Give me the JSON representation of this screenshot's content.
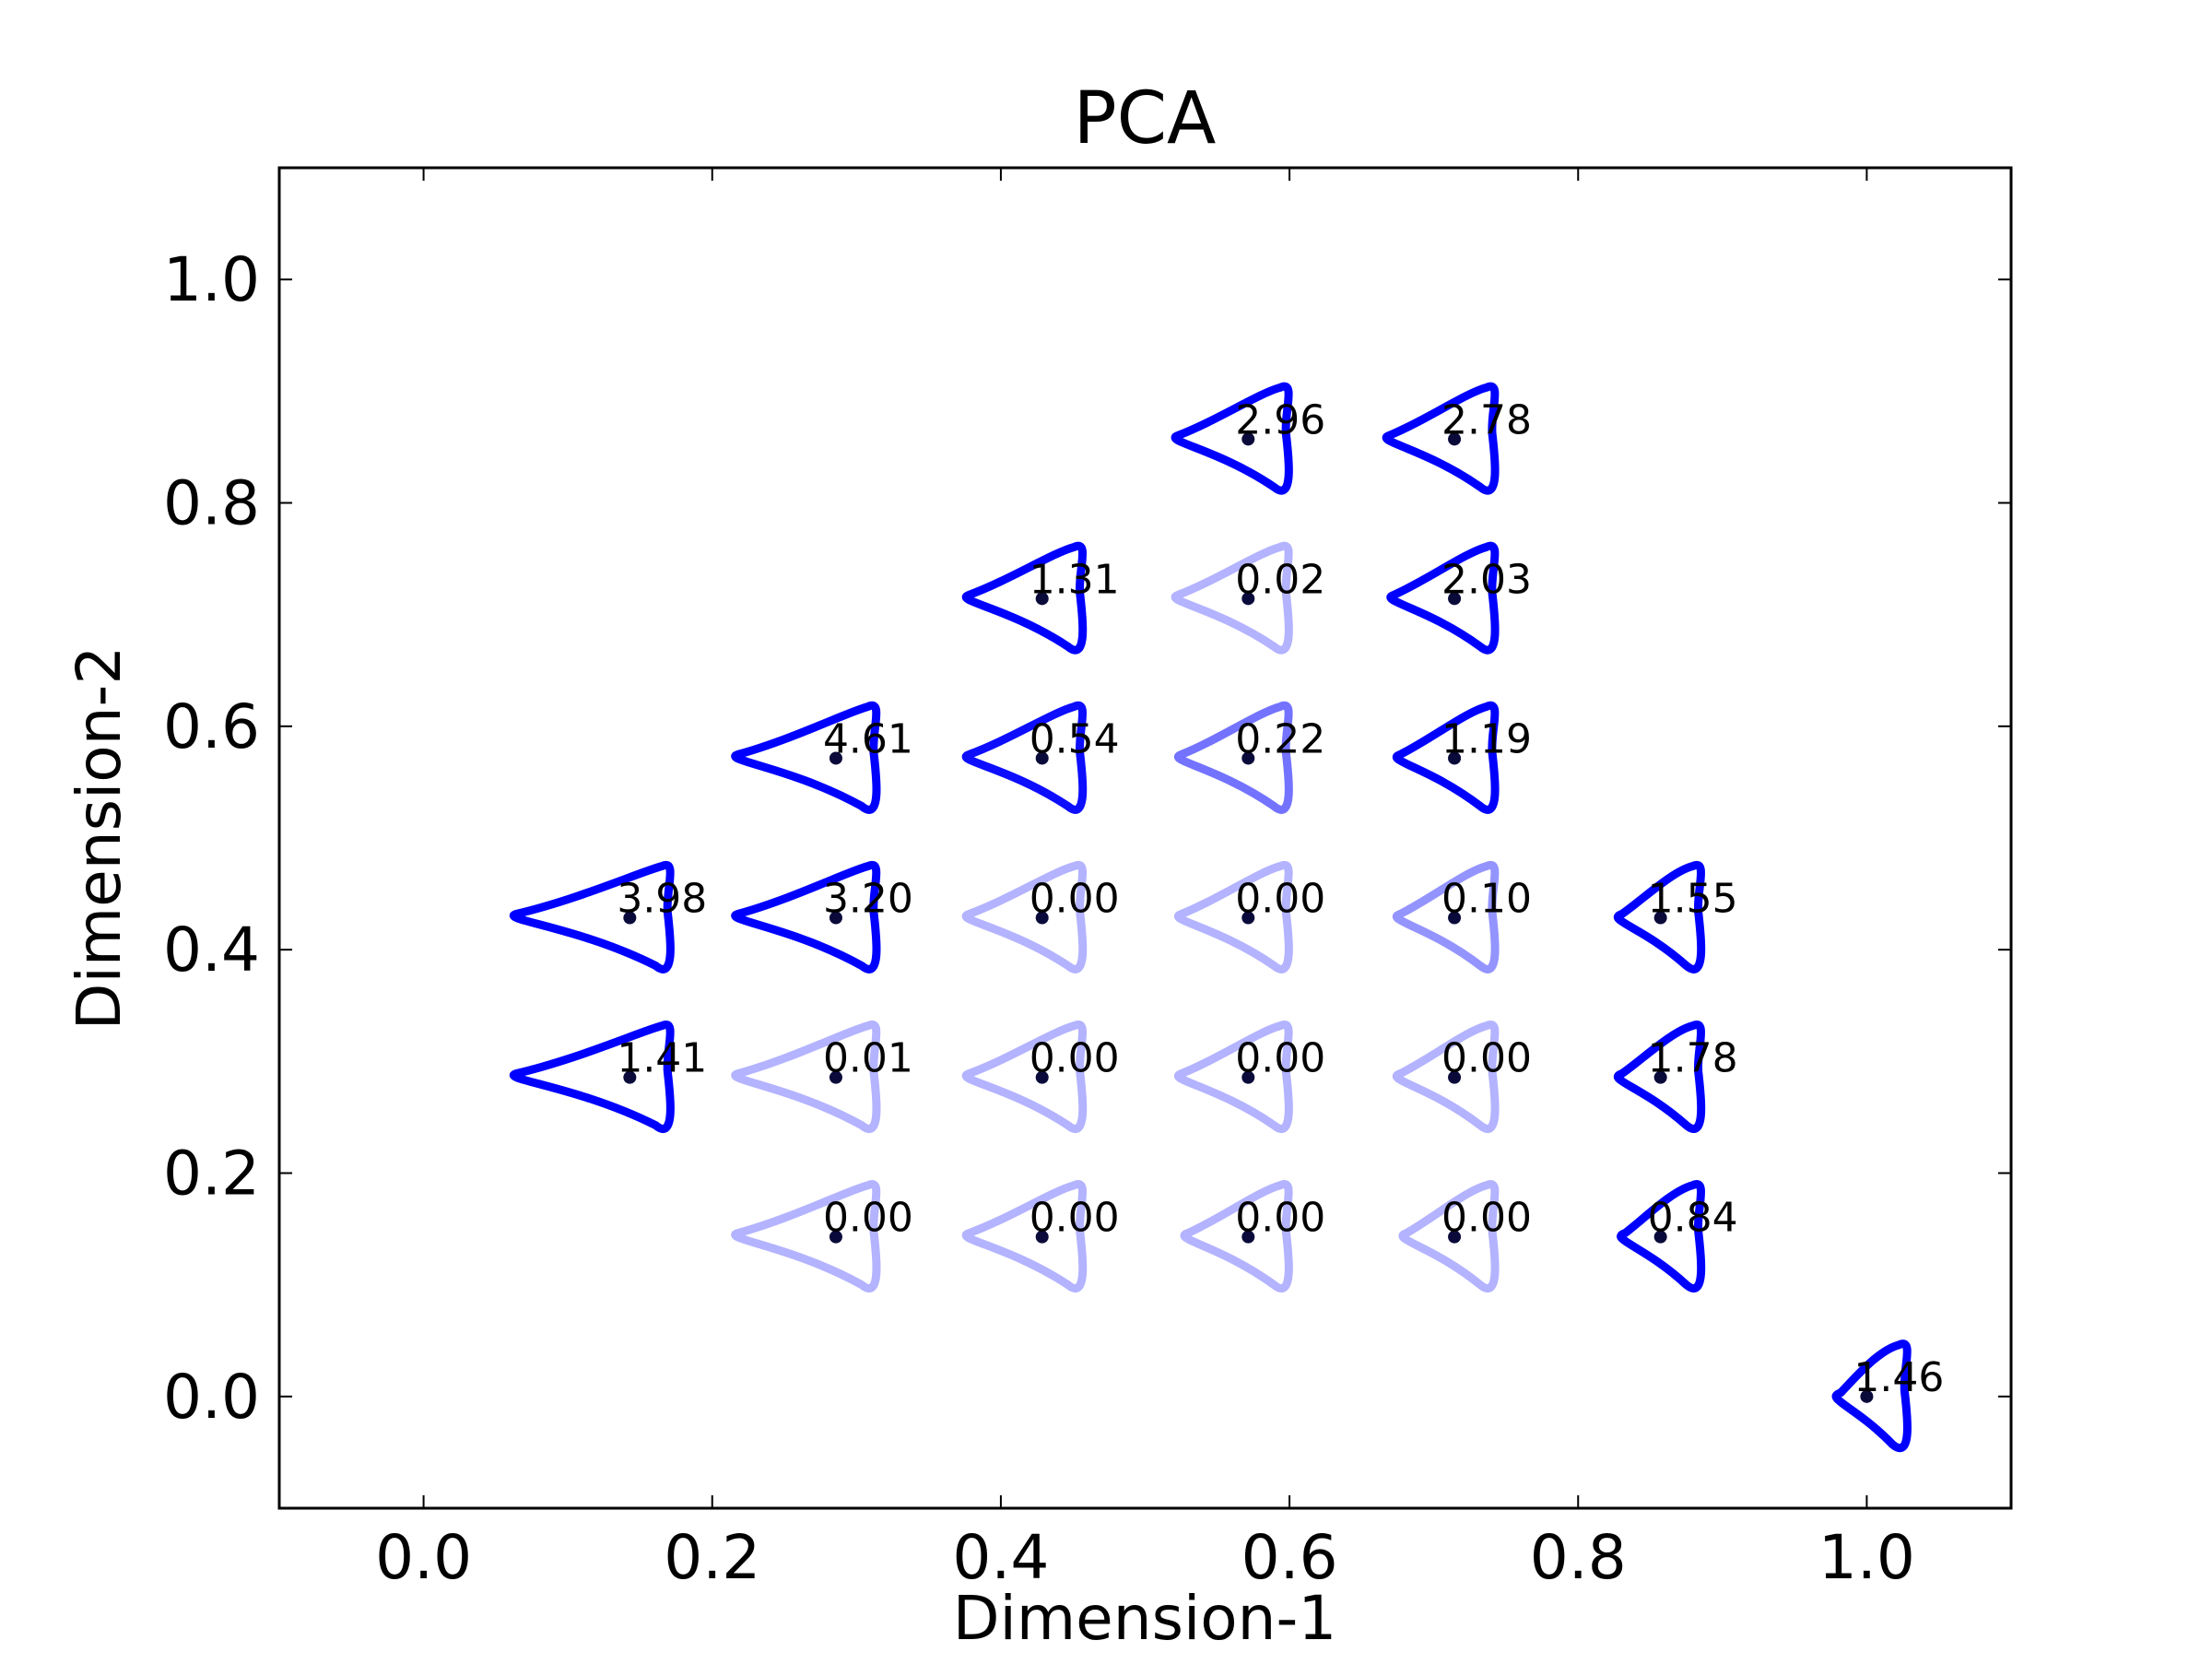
{
  "chart_data": {
    "type": "scatter",
    "title": "PCA",
    "xlabel": "Dimension-1",
    "ylabel": "Dimension-2",
    "xlim": [
      -0.1,
      1.1
    ],
    "ylim": [
      -0.1,
      1.1
    ],
    "xticks": [
      "0.0",
      "0.2",
      "0.4",
      "0.6",
      "0.8",
      "1.0"
    ],
    "yticks": [
      "0.0",
      "0.2",
      "0.4",
      "0.6",
      "0.8",
      "1.0"
    ],
    "grid": false,
    "marker_color": "#0000ff",
    "point_color": "#000000",
    "points": [
      {
        "x": 0.5714,
        "y": 0.8571,
        "label": "2.96",
        "strength": 1.0,
        "size": 1.0
      },
      {
        "x": 0.7143,
        "y": 0.8571,
        "label": "2.78",
        "strength": 1.0,
        "size": 0.92
      },
      {
        "x": 0.4286,
        "y": 0.7143,
        "label": "1.31",
        "strength": 1.0,
        "size": 1.05
      },
      {
        "x": 0.5714,
        "y": 0.7143,
        "label": "0.02",
        "strength": 0.3,
        "size": 1.0
      },
      {
        "x": 0.7143,
        "y": 0.7143,
        "label": "2.03",
        "strength": 1.0,
        "size": 0.85
      },
      {
        "x": 0.2857,
        "y": 0.5714,
        "label": "4.61",
        "strength": 1.0,
        "size": 1.45
      },
      {
        "x": 0.4286,
        "y": 0.5714,
        "label": "0.54",
        "strength": 0.95,
        "size": 1.05
      },
      {
        "x": 0.5714,
        "y": 0.5714,
        "label": "0.22",
        "strength": 0.55,
        "size": 0.95
      },
      {
        "x": 0.7143,
        "y": 0.5714,
        "label": "1.19",
        "strength": 1.0,
        "size": 0.75
      },
      {
        "x": 0.1429,
        "y": 0.4286,
        "label": "3.98",
        "strength": 1.0,
        "size": 1.7
      },
      {
        "x": 0.2857,
        "y": 0.4286,
        "label": "3.20",
        "strength": 1.0,
        "size": 1.45
      },
      {
        "x": 0.4286,
        "y": 0.4286,
        "label": "0.00",
        "strength": 0.3,
        "size": 1.05
      },
      {
        "x": 0.5714,
        "y": 0.4286,
        "label": "0.00",
        "strength": 0.3,
        "size": 0.95
      },
      {
        "x": 0.7143,
        "y": 0.4286,
        "label": "0.10",
        "strength": 0.42,
        "size": 0.75
      },
      {
        "x": 0.8571,
        "y": 0.4286,
        "label": "1.55",
        "strength": 1.0,
        "size": 0.5
      },
      {
        "x": 0.1429,
        "y": 0.2857,
        "label": "1.41",
        "strength": 1.0,
        "size": 1.7
      },
      {
        "x": 0.2857,
        "y": 0.2857,
        "label": "0.01",
        "strength": 0.3,
        "size": 1.45
      },
      {
        "x": 0.4286,
        "y": 0.2857,
        "label": "0.00",
        "strength": 0.3,
        "size": 1.05
      },
      {
        "x": 0.5714,
        "y": 0.2857,
        "label": "0.00",
        "strength": 0.3,
        "size": 0.95
      },
      {
        "x": 0.7143,
        "y": 0.2857,
        "label": "0.00",
        "strength": 0.3,
        "size": 0.75
      },
      {
        "x": 0.8571,
        "y": 0.2857,
        "label": "1.78",
        "strength": 1.0,
        "size": 0.5
      },
      {
        "x": 0.2857,
        "y": 0.1429,
        "label": "0.00",
        "strength": 0.3,
        "size": 1.45
      },
      {
        "x": 0.4286,
        "y": 0.1429,
        "label": "0.00",
        "strength": 0.3,
        "size": 1.05
      },
      {
        "x": 0.5714,
        "y": 0.1429,
        "label": "0.00",
        "strength": 0.3,
        "size": 0.85
      },
      {
        "x": 0.7143,
        "y": 0.1429,
        "label": "0.00",
        "strength": 0.3,
        "size": 0.65
      },
      {
        "x": 0.8571,
        "y": 0.1429,
        "label": "0.84",
        "strength": 1.0,
        "size": 0.45
      },
      {
        "x": 1.0,
        "y": 0.0,
        "label": "1.46",
        "strength": 1.0,
        "size": 0.3
      }
    ]
  }
}
